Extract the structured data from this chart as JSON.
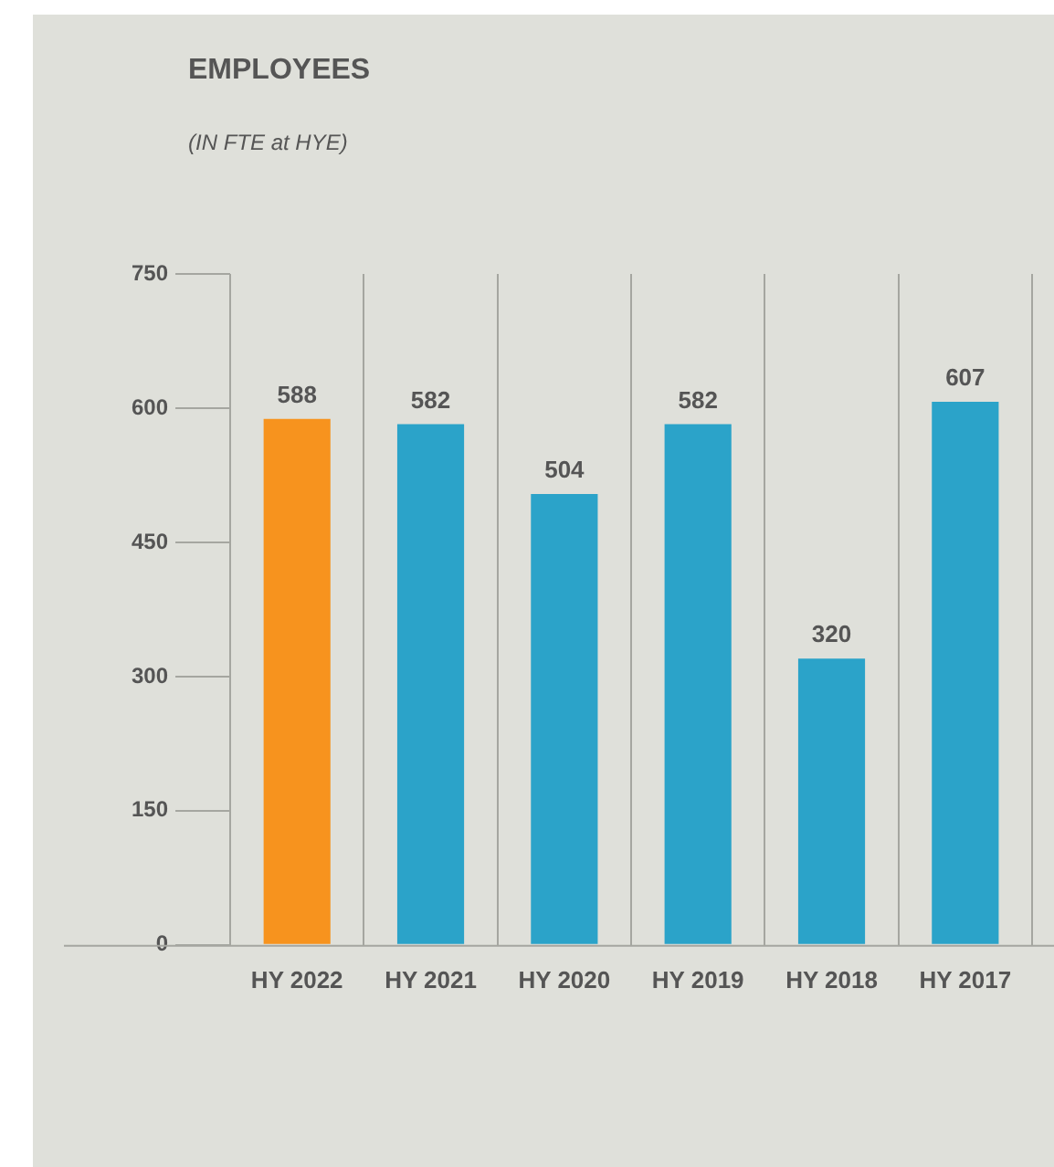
{
  "chart_data": {
    "type": "bar",
    "title": "EMPLOYEES",
    "subtitle": "(IN FTE at HYE)",
    "categories": [
      "HY 2022",
      "HY 2021",
      "HY 2020",
      "HY 2019",
      "HY 2018",
      "HY 2017"
    ],
    "values": [
      588,
      582,
      504,
      582,
      320,
      607
    ],
    "colors": [
      "#f7931e",
      "#2ba3c9",
      "#2ba3c9",
      "#2ba3c9",
      "#2ba3c9",
      "#2ba3c9"
    ],
    "ylim": [
      0,
      750
    ],
    "yticks": [
      0,
      150,
      300,
      450,
      600,
      750
    ],
    "grid": "x",
    "data_labels": true
  }
}
